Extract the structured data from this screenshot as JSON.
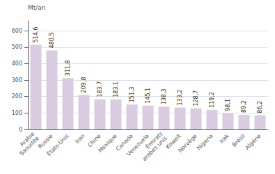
{
  "chart_data": {
    "type": "bar",
    "categories": [
      "Arabie\nSaoudite",
      "Russie",
      "États-Unis",
      "Iran",
      "Chine",
      "Mexique",
      "Canada",
      "Venezuela",
      "Émirats\narabes unis",
      "Koweït",
      "Norvège",
      "Nigeria",
      "Irak",
      "Brésil",
      "Algérie"
    ],
    "values": [
      514.6,
      480.5,
      311.8,
      209.8,
      183.7,
      183.1,
      151.3,
      145.1,
      138.3,
      133.2,
      128.7,
      119.2,
      98.1,
      89.2,
      86.2
    ],
    "value_labels": [
      "514,6",
      "480,5",
      "311,8",
      "209,8",
      "183,7",
      "183,1",
      "151,3",
      "145,1",
      "138,3",
      "133,2",
      "128,7",
      "119,2",
      "98,1",
      "89,2",
      "86,2"
    ],
    "data_labels": true,
    "color": "#d9cce3",
    "ylabel": "Mt/an",
    "ylim": [
      0,
      660
    ],
    "yticks": [
      0,
      100,
      200,
      300,
      400,
      500,
      600
    ],
    "grid": true
  }
}
